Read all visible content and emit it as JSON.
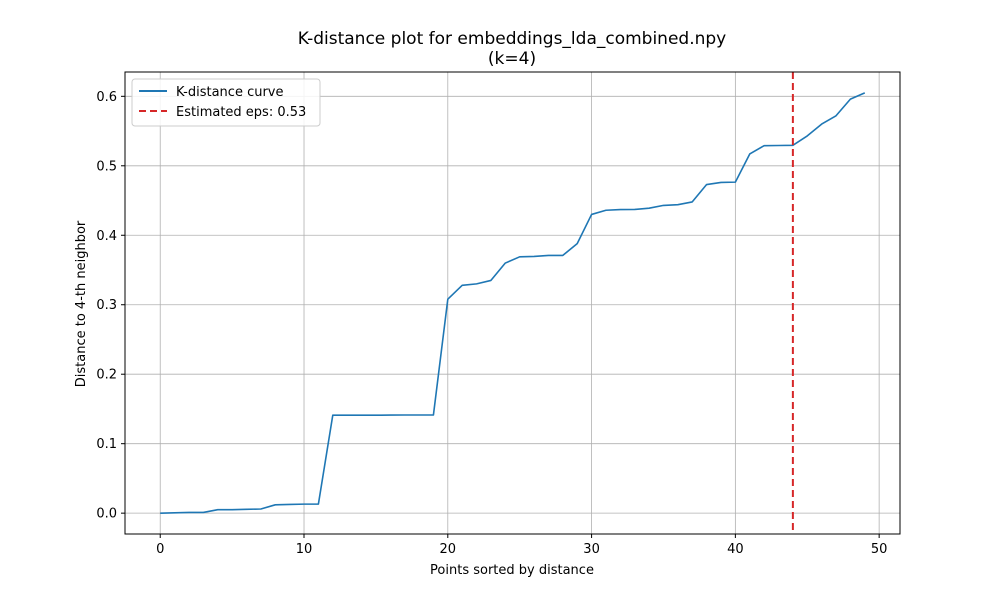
{
  "chart_data": {
    "type": "line",
    "title": "K-distance plot for embeddings_lda_combined.npy",
    "subtitle": "(k=4)",
    "xlabel": "Points sorted by distance",
    "ylabel": "Distance to 4-th neighbor",
    "xlim": [
      -2.45,
      51.45
    ],
    "ylim": [
      -0.03,
      0.635
    ],
    "x_ticks": [
      0,
      10,
      20,
      30,
      40,
      50
    ],
    "y_ticks": [
      0.0,
      0.1,
      0.2,
      0.3,
      0.4,
      0.5,
      0.6
    ],
    "x_tick_labels": [
      "0",
      "10",
      "20",
      "30",
      "40",
      "50"
    ],
    "y_tick_labels": [
      "0.0",
      "0.1",
      "0.2",
      "0.3",
      "0.4",
      "0.5",
      "0.6"
    ],
    "grid": true,
    "legend_position": "top-left",
    "series": [
      {
        "name": "K-distance curve",
        "color": "#1f77b4",
        "x": [
          0,
          1,
          2,
          3,
          4,
          5,
          6,
          7,
          8,
          9,
          10,
          11,
          12,
          13,
          14,
          15,
          16,
          17,
          18,
          19,
          20,
          21,
          22,
          23,
          24,
          25,
          26,
          27,
          28,
          29,
          30,
          31,
          32,
          33,
          34,
          35,
          36,
          37,
          38,
          39,
          40,
          41,
          42,
          43,
          44,
          45,
          46,
          47,
          48,
          49
        ],
        "y": [
          0.0,
          0.0005,
          0.001,
          0.001,
          0.005,
          0.005,
          0.0055,
          0.006,
          0.012,
          0.0125,
          0.013,
          0.013,
          0.141,
          0.141,
          0.141,
          0.141,
          0.1412,
          0.1413,
          0.1413,
          0.1413,
          0.308,
          0.328,
          0.33,
          0.335,
          0.36,
          0.369,
          0.3695,
          0.371,
          0.371,
          0.388,
          0.43,
          0.436,
          0.437,
          0.4372,
          0.439,
          0.443,
          0.444,
          0.448,
          0.473,
          0.476,
          0.4765,
          0.517,
          0.529,
          0.5292,
          0.5295,
          0.543,
          0.56,
          0.572,
          0.596,
          0.605
        ]
      }
    ],
    "annotations": [
      {
        "type": "vline",
        "x": 44,
        "name": "Estimated eps: 0.53",
        "color": "#d62728",
        "style": "dashed"
      }
    ]
  }
}
